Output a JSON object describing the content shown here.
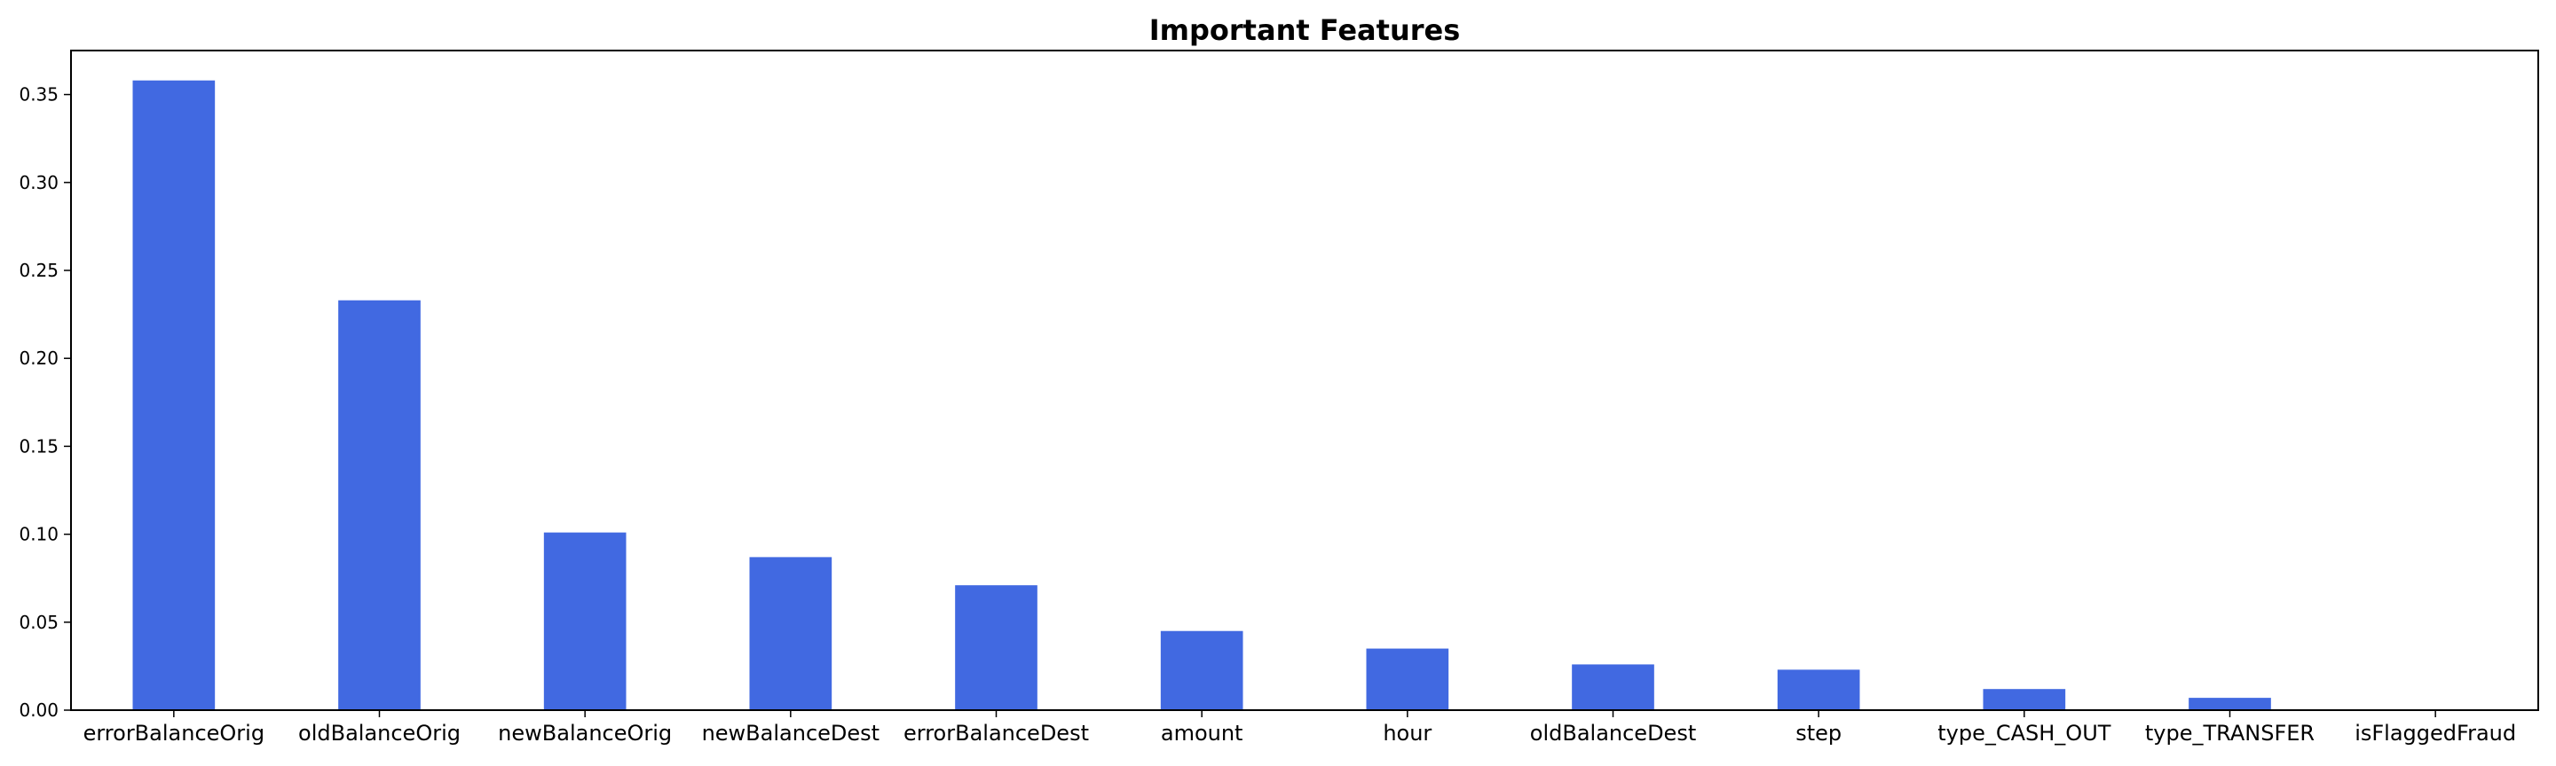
{
  "chart_data": {
    "type": "bar",
    "title": "Important Features",
    "xlabel": "",
    "ylabel": "",
    "categories": [
      "errorBalanceOrig",
      "oldBalanceOrig",
      "newBalanceOrig",
      "newBalanceDest",
      "errorBalanceDest",
      "amount",
      "hour",
      "oldBalanceDest",
      "step",
      "type_CASH_OUT",
      "type_TRANSFER",
      "isFlaggedFraud"
    ],
    "values": [
      0.358,
      0.233,
      0.101,
      0.087,
      0.071,
      0.045,
      0.035,
      0.026,
      0.023,
      0.012,
      0.007,
      0.0
    ],
    "ylim": [
      0,
      0.375
    ],
    "yticks": [
      "0.00",
      "0.05",
      "0.10",
      "0.15",
      "0.20",
      "0.25",
      "0.30",
      "0.35"
    ],
    "bar_color": "#4169E1",
    "grid": false,
    "legend": "none"
  }
}
